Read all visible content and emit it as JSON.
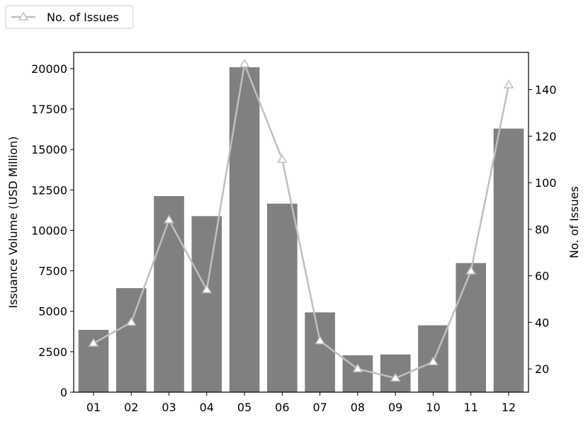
{
  "chart_data": {
    "type": "bar",
    "categories": [
      "01",
      "02",
      "03",
      "04",
      "05",
      "06",
      "07",
      "08",
      "09",
      "10",
      "11",
      "12"
    ],
    "series": [
      {
        "type": "bar",
        "axis": "left",
        "color": "#808080",
        "values": [
          3850,
          6430,
          12120,
          10880,
          20080,
          11650,
          4930,
          2280,
          2330,
          4130,
          7980,
          16290
        ]
      },
      {
        "type": "line",
        "axis": "right",
        "name": "No. of Issues",
        "color": "#bfbfbf",
        "marker": "triangle",
        "values": [
          31,
          40,
          84,
          54,
          151,
          110,
          32,
          20,
          16,
          23,
          62,
          142
        ]
      }
    ],
    "ylabel": "Issuance Volume (USD Million)",
    "ylabel_right": "No. of Issues",
    "xlabel": "",
    "ylim": [
      0,
      21000
    ],
    "ylim_right": [
      10,
      156
    ],
    "yticks": [
      "0",
      "2500",
      "5000",
      "7500",
      "10000",
      "12500",
      "15000",
      "17500",
      "20000"
    ],
    "yticks_right": [
      "20",
      "40",
      "60",
      "80",
      "100",
      "120",
      "140"
    ],
    "legend": {
      "entries": [
        "No. of Issues"
      ],
      "placement": "top-left"
    },
    "grid": false
  }
}
